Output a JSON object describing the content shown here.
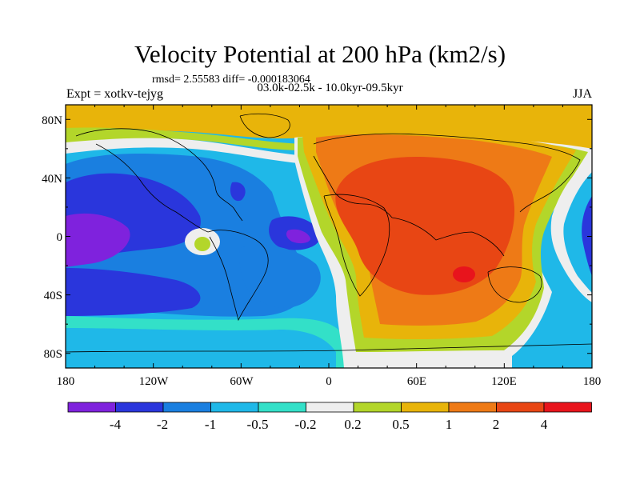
{
  "title": "Velocity Potential at 200 hPa (km2/s)",
  "stats": "rmsd= 2.55583 diff= -0.000183064",
  "expt": "Expt = xotkv-tejyg",
  "period": "03.0k-02.5k - 10.0kyr-09.5kyr",
  "season": "JJA",
  "map": {
    "projection": "cylindrical-equidistant",
    "lon_range": [
      -180,
      180
    ],
    "lat_range": [
      -90,
      90
    ],
    "x_tick_labels": [
      "180",
      "120W",
      "60W",
      "0",
      "60E",
      "120E",
      "180"
    ],
    "y_tick_labels": [
      "80N",
      "40N",
      "0",
      "40S",
      "80S"
    ],
    "field": "velocity potential anomaly",
    "positive_region": "Africa, Eurasia, Indian Ocean",
    "negative_region": "Pacific, Americas, Atlantic"
  },
  "colorbar": {
    "labels": [
      "-4",
      "-2",
      "-1",
      "-0.5",
      "-0.2",
      "0.2",
      "0.5",
      "1",
      "2",
      "4"
    ],
    "colors": [
      "#7f22dd",
      "#2a36dc",
      "#1a7fe0",
      "#1fb8e8",
      "#33e0c8",
      "#eeeeee",
      "#b3d62a",
      "#e8b40a",
      "#ee7a16",
      "#e84614",
      "#e8141c"
    ]
  }
}
